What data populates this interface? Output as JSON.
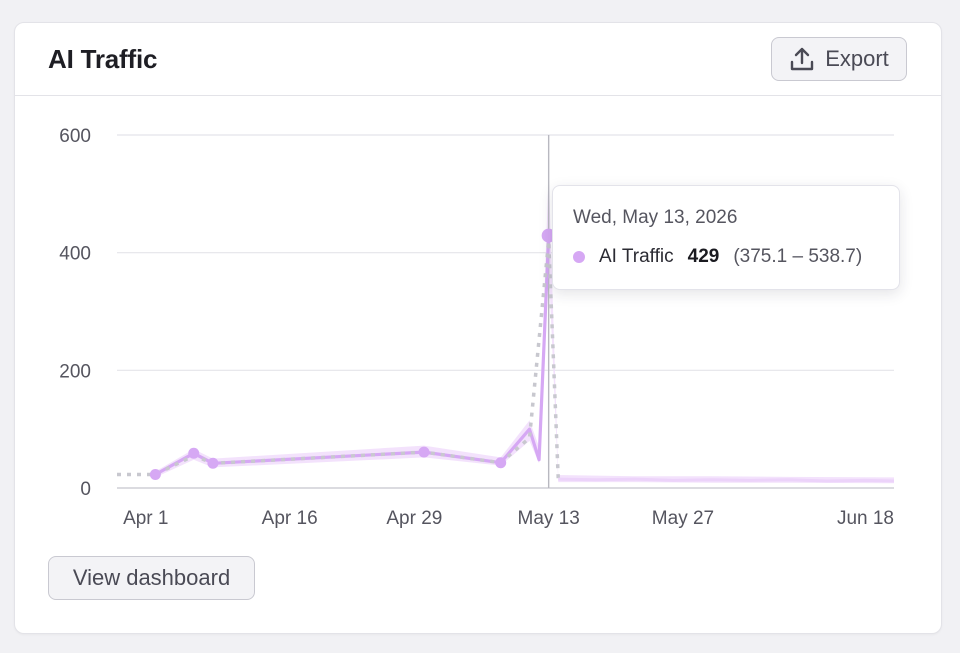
{
  "card": {
    "title": "AI Traffic",
    "export_label": "Export",
    "view_dashboard_label": "View dashboard"
  },
  "colors": {
    "series": "#d6a8f4",
    "band": "#f1ddfb",
    "forecast": "#c8c8cf",
    "grid": "#e4e4e9",
    "crosshair": "#b8b8c0"
  },
  "tooltip": {
    "date": "Wed, May 13, 2026",
    "series_name": "AI Traffic",
    "value": "429",
    "range": "(375.1 – 538.7)"
  },
  "chart_data": {
    "type": "line",
    "title": "AI Traffic",
    "xlabel": "",
    "ylabel": "",
    "ylim": [
      0,
      600
    ],
    "yticks": [
      0,
      200,
      400,
      600
    ],
    "xlim": [
      "2026-03-29",
      "2026-06-18"
    ],
    "xticks": [
      {
        "date": "2026-04-01",
        "label": "Apr 1"
      },
      {
        "date": "2026-04-16",
        "label": "Apr 16"
      },
      {
        "date": "2026-04-29",
        "label": "Apr 29"
      },
      {
        "date": "2026-05-13",
        "label": "May 13"
      },
      {
        "date": "2026-05-27",
        "label": "May 27"
      },
      {
        "date": "2026-06-18",
        "label": "Jun 18"
      }
    ],
    "grid": true,
    "legend": "none",
    "series": [
      {
        "name": "AI Traffic",
        "kind": "actual",
        "points": [
          {
            "x": "2026-04-02",
            "y": 23
          },
          {
            "x": "2026-04-06",
            "y": 59
          },
          {
            "x": "2026-04-08",
            "y": 42
          },
          {
            "x": "2026-04-30",
            "y": 61
          },
          {
            "x": "2026-05-08",
            "y": 43
          },
          {
            "x": "2026-05-11",
            "y": 100
          },
          {
            "x": "2026-05-12",
            "y": 48
          },
          {
            "x": "2026-05-13",
            "y": 429
          }
        ]
      },
      {
        "kind": "expected",
        "points": [
          {
            "x": "2026-03-29",
            "y": 23
          },
          {
            "x": "2026-04-02",
            "y": 23
          },
          {
            "x": "2026-04-06",
            "y": 55
          },
          {
            "x": "2026-04-08",
            "y": 42
          },
          {
            "x": "2026-04-30",
            "y": 61
          },
          {
            "x": "2026-05-08",
            "y": 43
          },
          {
            "x": "2026-05-11",
            "y": 85
          },
          {
            "x": "2026-05-13",
            "y": 420
          },
          {
            "x": "2026-05-14",
            "y": 15
          }
        ]
      },
      {
        "kind": "forecast",
        "points": [
          {
            "x": "2026-05-14",
            "y": 15
          },
          {
            "x": "2026-05-18",
            "y": 14
          },
          {
            "x": "2026-05-22",
            "y": 15
          },
          {
            "x": "2026-05-26",
            "y": 13
          },
          {
            "x": "2026-05-30",
            "y": 14
          },
          {
            "x": "2026-06-03",
            "y": 13
          },
          {
            "x": "2026-06-07",
            "y": 14
          },
          {
            "x": "2026-06-11",
            "y": 12
          },
          {
            "x": "2026-06-15",
            "y": 13
          },
          {
            "x": "2026-06-18",
            "y": 12
          }
        ]
      }
    ],
    "band": [
      {
        "x": "2026-04-02",
        "lo": 18,
        "hi": 28
      },
      {
        "x": "2026-04-06",
        "lo": 48,
        "hi": 66
      },
      {
        "x": "2026-04-08",
        "lo": 35,
        "hi": 50
      },
      {
        "x": "2026-04-30",
        "lo": 52,
        "hi": 72
      },
      {
        "x": "2026-05-08",
        "lo": 38,
        "hi": 52
      },
      {
        "x": "2026-05-11",
        "lo": 80,
        "hi": 115
      },
      {
        "x": "2026-05-12",
        "lo": 42,
        "hi": 70
      },
      {
        "x": "2026-05-13",
        "lo": 375.1,
        "hi": 538.7
      },
      {
        "x": "2026-05-14",
        "lo": 10,
        "hi": 22
      },
      {
        "x": "2026-05-22",
        "lo": 10,
        "hi": 20
      },
      {
        "x": "2026-05-30",
        "lo": 9,
        "hi": 20
      },
      {
        "x": "2026-06-07",
        "lo": 9,
        "hi": 19
      },
      {
        "x": "2026-06-18",
        "lo": 8,
        "hi": 18
      }
    ],
    "markers": [
      "2026-04-02",
      "2026-04-06",
      "2026-04-08",
      "2026-04-30",
      "2026-05-08",
      "2026-05-13"
    ],
    "highlight": {
      "x": "2026-05-13",
      "y": 429,
      "lo": 375.1,
      "hi": 538.7
    }
  }
}
